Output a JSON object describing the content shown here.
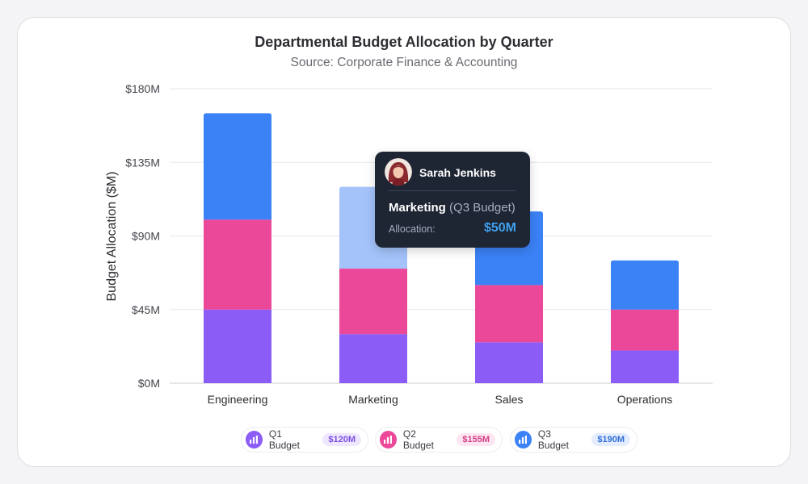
{
  "title": "Departmental Budget Allocation by Quarter",
  "subtitle": "Source: Corporate Finance & Accounting",
  "chart_data": {
    "type": "bar",
    "stacked": true,
    "categories": [
      "Engineering",
      "Marketing",
      "Sales",
      "Operations"
    ],
    "series": [
      {
        "name": "Q1 Budget",
        "values": [
          45,
          30,
          25,
          20
        ],
        "color": "#8b5cf6"
      },
      {
        "name": "Q2 Budget",
        "values": [
          55,
          40,
          35,
          25
        ],
        "color": "#ec4899"
      },
      {
        "name": "Q3 Budget",
        "values": [
          65,
          50,
          45,
          30
        ],
        "color": "#3b82f6"
      }
    ],
    "ylabel": "Budget Allocation ($M)",
    "xlabel": "",
    "ylim": [
      0,
      180
    ],
    "yticks": [
      0,
      45,
      90,
      135,
      180
    ],
    "ytick_labels": [
      "$0M",
      "$45M",
      "$90M",
      "$135M",
      "$180M"
    ],
    "grid": true,
    "highlight": {
      "category": "Marketing",
      "series": "Q3 Budget",
      "color": "#a3c3fa"
    }
  },
  "tooltip": {
    "user_name": "Sarah Jenkins",
    "category": "Marketing",
    "series_label": "(Q3 Budget)",
    "allocation_label": "Allocation:",
    "allocation_value": "$50M"
  },
  "legend": [
    {
      "label": "Q1 Budget",
      "total": "$120M",
      "color": "#8b5cf6",
      "badge_bg": "#efe7fd",
      "badge_fg": "#7c4fe0",
      "icon": "bar-chart-icon"
    },
    {
      "label": "Q2 Budget",
      "total": "$155M",
      "color": "#ec4899",
      "badge_bg": "#fde6f1",
      "badge_fg": "#d43d86",
      "icon": "bar-chart-icon"
    },
    {
      "label": "Q3 Budget",
      "total": "$190M",
      "color": "#3b82f6",
      "badge_bg": "#e3edfd",
      "badge_fg": "#2f6fd8",
      "icon": "bar-chart-icon"
    }
  ]
}
